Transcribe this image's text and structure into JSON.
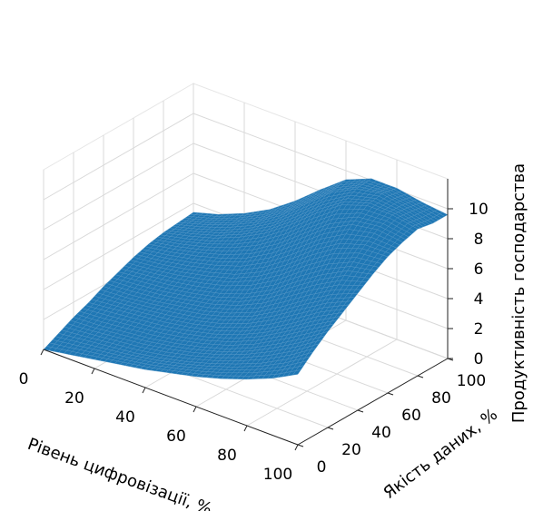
{
  "chart_data": {
    "type": "surface3d",
    "title": "",
    "xlabel": "Рівень цифровізації, %",
    "ylabel": "Якість даних, %",
    "zlabel": "Продуктивність господарства",
    "xlim": [
      0,
      100
    ],
    "ylim": [
      0,
      100
    ],
    "zlim": [
      0,
      12
    ],
    "xticks": [
      "0",
      "20",
      "40",
      "60",
      "80",
      "100"
    ],
    "yticks": [
      "0",
      "20",
      "40",
      "60",
      "80",
      "100"
    ],
    "zticks": [
      "0",
      "2",
      "4",
      "6",
      "8",
      "10"
    ],
    "grid": true,
    "x": [
      0,
      10,
      20,
      30,
      40,
      50,
      60,
      70,
      80,
      90,
      100
    ],
    "y": [
      0,
      10,
      20,
      30,
      40,
      50,
      60,
      70,
      80,
      90,
      100
    ],
    "z": [
      [
        0.0,
        0.5,
        1.0,
        1.4,
        1.9,
        2.3,
        2.7,
        3.0,
        3.2,
        3.3,
        3.4
      ],
      [
        0.3,
        0.7,
        1.1,
        1.6,
        2.0,
        2.5,
        2.9,
        3.3,
        3.6,
        3.8,
        3.9
      ],
      [
        0.6,
        0.9,
        1.3,
        1.8,
        2.2,
        2.7,
        3.2,
        3.7,
        4.1,
        4.4,
        4.6
      ],
      [
        0.9,
        1.1,
        1.5,
        2.0,
        2.5,
        3.0,
        3.6,
        4.2,
        4.8,
        5.2,
        5.5
      ],
      [
        1.2,
        1.4,
        1.8,
        2.3,
        2.8,
        3.4,
        4.1,
        4.9,
        5.7,
        6.3,
        6.7
      ],
      [
        1.6,
        1.8,
        2.2,
        2.7,
        3.3,
        4.0,
        4.9,
        5.9,
        6.9,
        7.7,
        8.1
      ],
      [
        2.0,
        2.3,
        2.7,
        3.3,
        4.0,
        4.9,
        6.0,
        7.2,
        8.3,
        9.1,
        9.4
      ],
      [
        2.5,
        2.9,
        3.4,
        4.1,
        5.0,
        6.1,
        7.3,
        8.5,
        9.5,
        10.0,
        10.1
      ],
      [
        3.1,
        3.6,
        4.3,
        5.1,
        6.1,
        7.2,
        8.4,
        9.4,
        10.1,
        10.3,
        10.1
      ],
      [
        3.8,
        4.5,
        5.3,
        6.2,
        7.1,
        8.1,
        9.0,
        9.7,
        10.1,
        10.0,
        9.8
      ],
      [
        4.7,
        5.6,
        6.4,
        7.1,
        7.8,
        8.5,
        9.1,
        9.5,
        9.8,
        9.6,
        9.6
      ]
    ],
    "colors": {
      "surface": "#1f77b4",
      "surface_edge": "#5b9bc9",
      "pane": "#ffffff",
      "grid": "#d9d9d9",
      "axis": "#222222"
    }
  }
}
